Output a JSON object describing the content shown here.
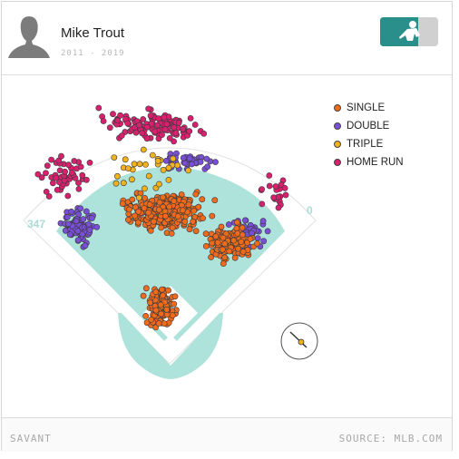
{
  "header": {
    "player_name": "Mike Trout",
    "years": "2011 - 2019"
  },
  "footer": {
    "left": "SAVANT",
    "right": "SOURCE: MLB.COM"
  },
  "distances": {
    "left_field": "347",
    "right_field": "0"
  },
  "colors": {
    "field": "#aee3dc",
    "single": "#f06a1c",
    "double": "#7a4fd8",
    "triple": "#f2b21b",
    "home_run": "#d9206f"
  },
  "chart_data": {
    "type": "scatter",
    "title": "",
    "legend_position": "top-right",
    "series": [
      {
        "name": "SINGLE",
        "color": "#f06a1c"
      },
      {
        "name": "DOUBLE",
        "color": "#7a4fd8"
      },
      {
        "name": "TRIPLE",
        "color": "#f2b21b"
      },
      {
        "name": "HOME RUN",
        "color": "#d9206f"
      }
    ]
  }
}
